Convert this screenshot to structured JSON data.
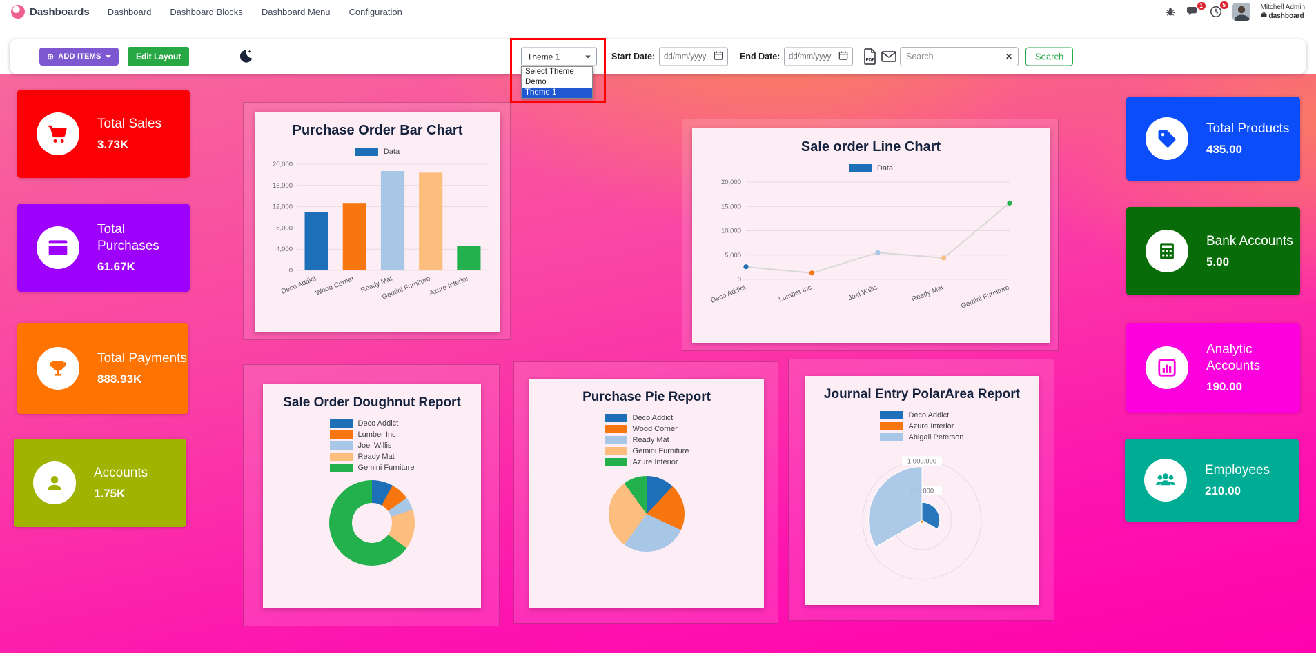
{
  "navbar": {
    "brand": "Dashboards",
    "menu": [
      "Dashboard",
      "Dashboard Blocks",
      "Dashboard Menu",
      "Configuration"
    ],
    "badges": {
      "chat": "1",
      "activity": "5"
    },
    "user": {
      "name": "Mitchell Admin",
      "company": "dashboard"
    }
  },
  "toolbar": {
    "add_items": "ADD ITEMS",
    "edit_layout": "Edit Layout",
    "theme": {
      "selected": "Theme 1",
      "options": [
        "Select Theme",
        "Demo",
        "Theme 1"
      ]
    },
    "start_date_label": "Start Date:",
    "end_date_label": "End Date:",
    "date_placeholder": "dd/mm/yyyy",
    "search_placeholder": "Search",
    "search_button": "Search",
    "clear_icon": "✕"
  },
  "tiles": {
    "left": [
      {
        "label": "Total Sales",
        "value": "3.73K",
        "color": "#fb0105",
        "icon": "cart-icon"
      },
      {
        "label": "Total Purchases",
        "value": "61.67K",
        "color": "#9d00fb",
        "icon": "credit-card-icon"
      },
      {
        "label": "Total Payments",
        "value": "888.93K",
        "color": "#ff7300",
        "icon": "trophy-icon"
      },
      {
        "label": "Accounts",
        "value": "1.75K",
        "color": "#9fb300",
        "icon": "user-icon"
      }
    ],
    "right": [
      {
        "label": "Total Products",
        "value": "435.00",
        "color": "#0b4df8",
        "icon": "tag-icon"
      },
      {
        "label": "Bank Accounts",
        "value": "5.00",
        "color": "#086d08",
        "icon": "calculator-icon"
      },
      {
        "label": "Analytic Accounts",
        "value": "190.00",
        "color": "#fc01dd",
        "icon": "bar-chart-icon"
      },
      {
        "label": "Employees",
        "value": "210.00",
        "color": "#00ad94",
        "icon": "users-icon"
      }
    ]
  },
  "chart_data": [
    {
      "type": "bar",
      "title": "Purchase Order Bar Chart",
      "legend": [
        {
          "label": "Data",
          "color": "#1d6fb8"
        }
      ],
      "categories": [
        "Deco Addict",
        "Wood Corner",
        "Ready Mat",
        "Gemini Furniture",
        "Azure Interior"
      ],
      "values": [
        11000,
        12700,
        18700,
        18400,
        4600
      ],
      "colors": [
        "#1d6fb8",
        "#f7760f",
        "#a8c6e6",
        "#fcbe7e",
        "#23b14d"
      ],
      "ylim": [
        0,
        20000
      ],
      "yticks": [
        "0",
        "4,000",
        "8,000",
        "12,000",
        "16,000",
        "20,000"
      ],
      "grid": true,
      "legend_position": "top"
    },
    {
      "type": "line",
      "title": "Sale order Line Chart",
      "legend": [
        {
          "label": "Data",
          "color": "#1d6fb8"
        }
      ],
      "categories": [
        "Deco Addict",
        "Lumber Inc",
        "Joel Willis",
        "Ready Mat",
        "Gemini Furniture"
      ],
      "values": [
        2600,
        1300,
        5500,
        4400,
        15700
      ],
      "point_colors": [
        "#1d6fb8",
        "#f7760f",
        "#a8c6e6",
        "#fcbe7e",
        "#23b14d"
      ],
      "line_color": "#d8d8d8",
      "ylim": [
        0,
        20000
      ],
      "yticks": [
        "0",
        "5,000",
        "10,000",
        "15,000",
        "20,000"
      ],
      "grid": true,
      "legend_position": "top"
    },
    {
      "type": "doughnut",
      "title": "Sale Order Doughnut Report",
      "labels": [
        "Deco Addict",
        "Lumber Inc",
        "Joel Willis",
        "Ready Mat",
        "Gemini Furniture"
      ],
      "values": [
        8,
        7,
        5,
        15,
        65
      ],
      "colors": [
        "#1d6fb8",
        "#f7760f",
        "#a8c6e6",
        "#fcbe7e",
        "#23b14d"
      ],
      "legend_position": "top"
    },
    {
      "type": "pie",
      "title": "Purchase Pie Report",
      "labels": [
        "Deco Addict",
        "Wood Corner",
        "Ready Mat",
        "Gemini Furniture",
        "Azure Interior"
      ],
      "values": [
        12,
        20,
        28,
        30,
        10
      ],
      "colors": [
        "#1d6fb8",
        "#f7760f",
        "#a8c6e6",
        "#fcbe7e",
        "#23b14d"
      ],
      "legend_position": "top"
    },
    {
      "type": "polarArea",
      "title": "Journal Entry PolarArea Report",
      "labels": [
        "Deco Addict",
        "Azure Interior",
        "Abigail Peterson"
      ],
      "values": [
        300000,
        50000,
        900000
      ],
      "colors": [
        "#1d6fb8",
        "#f7760f",
        "#a8c6e6"
      ],
      "rmax": 1000000,
      "rticks": [
        {
          "label": "1,000,000",
          "frac": 1
        },
        {
          "label": "500,000",
          "frac": 0.5
        }
      ],
      "legend_position": "top"
    }
  ]
}
